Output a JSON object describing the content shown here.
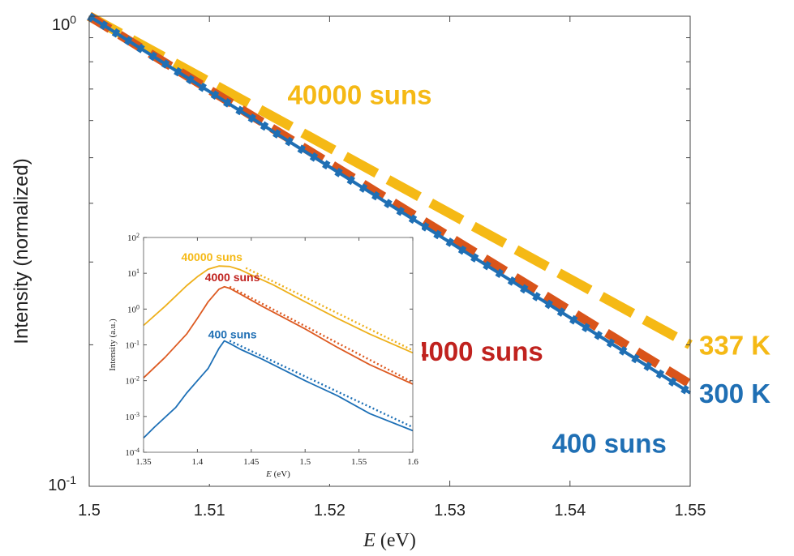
{
  "chart_data": [
    {
      "type": "line",
      "xlabel_var": "E",
      "xlabel_unit": " (eV)",
      "ylabel": "Intensity (normalized)",
      "xlim": [
        1.5,
        1.55
      ],
      "ylim": [
        0.1,
        1
      ],
      "yscale": "log",
      "grid": false,
      "x_ticks": [
        "1.5",
        "1.51",
        "1.52",
        "1.53",
        "1.54",
        "1.55"
      ],
      "y_ticks": [
        {
          "base": "10",
          "exp": "0",
          "value": 1
        },
        {
          "base": "10",
          "exp": "-1",
          "value": 0.1
        }
      ],
      "series": [
        {
          "name": "40000 suns",
          "color": "#f5b915",
          "style": "dashed",
          "x": [
            1.5,
            1.55
          ],
          "y": [
            1.0,
            0.2
          ]
        },
        {
          "name": "4000 suns",
          "color": "#d9541a",
          "style": "dashed",
          "x": [
            1.5,
            1.55
          ],
          "y": [
            1.0,
            0.165
          ]
        },
        {
          "name": "400 suns",
          "color": "#1f6fb4",
          "style": "dotted-solid",
          "x": [
            1.5,
            1.55
          ],
          "y": [
            1.0,
            0.158
          ]
        }
      ],
      "annotations": [
        {
          "text": "40000 suns",
          "color": "#f5b915",
          "x": 1.5165,
          "y": 0.65
        },
        {
          "text": "4000 suns",
          "color": "#c0221e",
          "x": 1.527,
          "y": 0.185
        },
        {
          "text": "400 suns",
          "color": "#1f6fb4",
          "x": 1.5385,
          "y": 0.118
        }
      ],
      "right_labels": [
        {
          "text": "337 K",
          "color": "#f5b915",
          "y": 0.2
        },
        {
          "text": "300 K",
          "color": "#1f6fb4",
          "y": 0.158
        }
      ]
    },
    {
      "type": "line",
      "xlabel_var": "E",
      "xlabel_unit": " (eV)",
      "ylabel": "Intensity (a.u.)",
      "xlim": [
        1.35,
        1.6
      ],
      "ylim": [
        0.0001,
        100
      ],
      "yscale": "log",
      "x_ticks": [
        "1.35",
        "1.4",
        "1.45",
        "1.5",
        "1.55",
        "1.6"
      ],
      "y_ticks": [
        {
          "base": "10",
          "exp": "2",
          "value": 100
        },
        {
          "base": "10",
          "exp": "1",
          "value": 10
        },
        {
          "base": "10",
          "exp": "0",
          "value": 1
        },
        {
          "base": "10",
          "exp": "-1",
          "value": 0.1
        },
        {
          "base": "10",
          "exp": "-2",
          "value": 0.01
        },
        {
          "base": "10",
          "exp": "-3",
          "value": 0.001
        },
        {
          "base": "10",
          "exp": "-4",
          "value": 0.0001
        }
      ],
      "series": [
        {
          "name": "40000 suns",
          "color": "#eeb01b",
          "x": [
            1.35,
            1.37,
            1.39,
            1.4,
            1.41,
            1.42,
            1.43,
            1.44,
            1.45,
            1.47,
            1.5,
            1.53,
            1.56,
            1.6
          ],
          "y": [
            0.35,
            1.2,
            4.5,
            8,
            13,
            16,
            15.5,
            12.5,
            9,
            4.8,
            1.6,
            0.55,
            0.2,
            0.06
          ],
          "fit": {
            "x": [
              1.445,
              1.6
            ],
            "y": [
              14,
              0.07
            ]
          }
        },
        {
          "name": "4000 suns",
          "color": "#dd5a21",
          "x": [
            1.35,
            1.37,
            1.39,
            1.4,
            1.41,
            1.42,
            1.425,
            1.43,
            1.44,
            1.46,
            1.5,
            1.53,
            1.56,
            1.6
          ],
          "y": [
            0.012,
            0.045,
            0.2,
            0.55,
            1.6,
            3.6,
            4.2,
            3.8,
            2.6,
            1.2,
            0.28,
            0.085,
            0.028,
            0.008
          ],
          "fit": {
            "x": [
              1.43,
              1.6
            ],
            "y": [
              4.2,
              0.009
            ]
          }
        },
        {
          "name": "400 suns",
          "color": "#1c6fb6",
          "x": [
            1.35,
            1.36,
            1.38,
            1.39,
            1.4,
            1.41,
            1.42,
            1.425,
            1.43,
            1.44,
            1.46,
            1.5,
            1.53,
            1.56,
            1.6
          ],
          "y": [
            0.00025,
            0.0005,
            0.0018,
            0.0045,
            0.01,
            0.022,
            0.08,
            0.13,
            0.11,
            0.075,
            0.04,
            0.01,
            0.0038,
            0.0012,
            0.0004
          ],
          "fit": {
            "x": [
              1.43,
              1.6
            ],
            "y": [
              0.13,
              0.0005
            ]
          }
        }
      ],
      "annotations": [
        {
          "text": "40000 suns",
          "color": "#f5b915",
          "x": 1.385,
          "y": 22
        },
        {
          "text": "4000 suns",
          "color": "#c0221e",
          "x": 1.407,
          "y": 6
        },
        {
          "text": "400 suns",
          "color": "#1f6fb4",
          "x": 1.41,
          "y": 0.15
        }
      ]
    }
  ]
}
